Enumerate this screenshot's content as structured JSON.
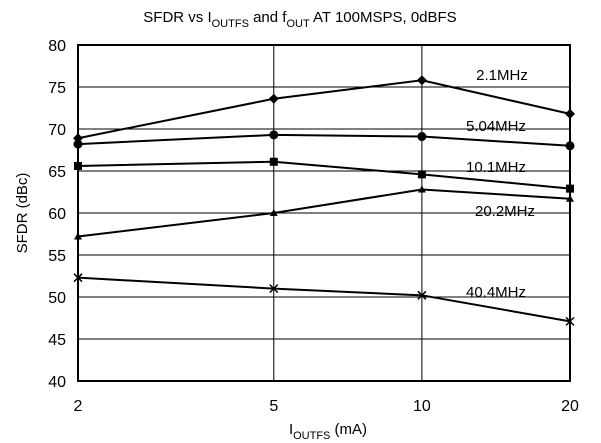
{
  "chart_data": {
    "type": "line",
    "title": {
      "part1": "SFDR vs I",
      "sub1": "OUTFS",
      "part2": " and f",
      "sub2": "OUT",
      "part3": " AT 100MSPS, 0dBFS"
    },
    "xlabel": {
      "main": "I",
      "sub": "OUTFS",
      "suffix": " (mA)"
    },
    "ylabel": "SFDR (dBc)",
    "x_scale": "log",
    "x": [
      2,
      5,
      10,
      20
    ],
    "x_tick_labels": [
      "2",
      "5",
      "10",
      "20"
    ],
    "ylim": [
      40,
      80
    ],
    "y_ticks": [
      40,
      45,
      50,
      55,
      60,
      65,
      70,
      75,
      80
    ],
    "grid": true,
    "series": [
      {
        "name": "2.1MHz",
        "marker": "diamond",
        "values": [
          68.9,
          73.6,
          75.8,
          71.8
        ]
      },
      {
        "name": "5.04MHz",
        "marker": "circle",
        "values": [
          68.2,
          69.3,
          69.1,
          68.0
        ]
      },
      {
        "name": "10.1MHz",
        "marker": "square",
        "values": [
          65.6,
          66.1,
          64.6,
          62.9
        ]
      },
      {
        "name": "20.2MHz",
        "marker": "triangle",
        "values": [
          57.2,
          60.0,
          62.8,
          61.7
        ]
      },
      {
        "name": "40.4MHz",
        "marker": "x",
        "values": [
          52.3,
          51.0,
          50.2,
          47.1
        ]
      }
    ]
  }
}
